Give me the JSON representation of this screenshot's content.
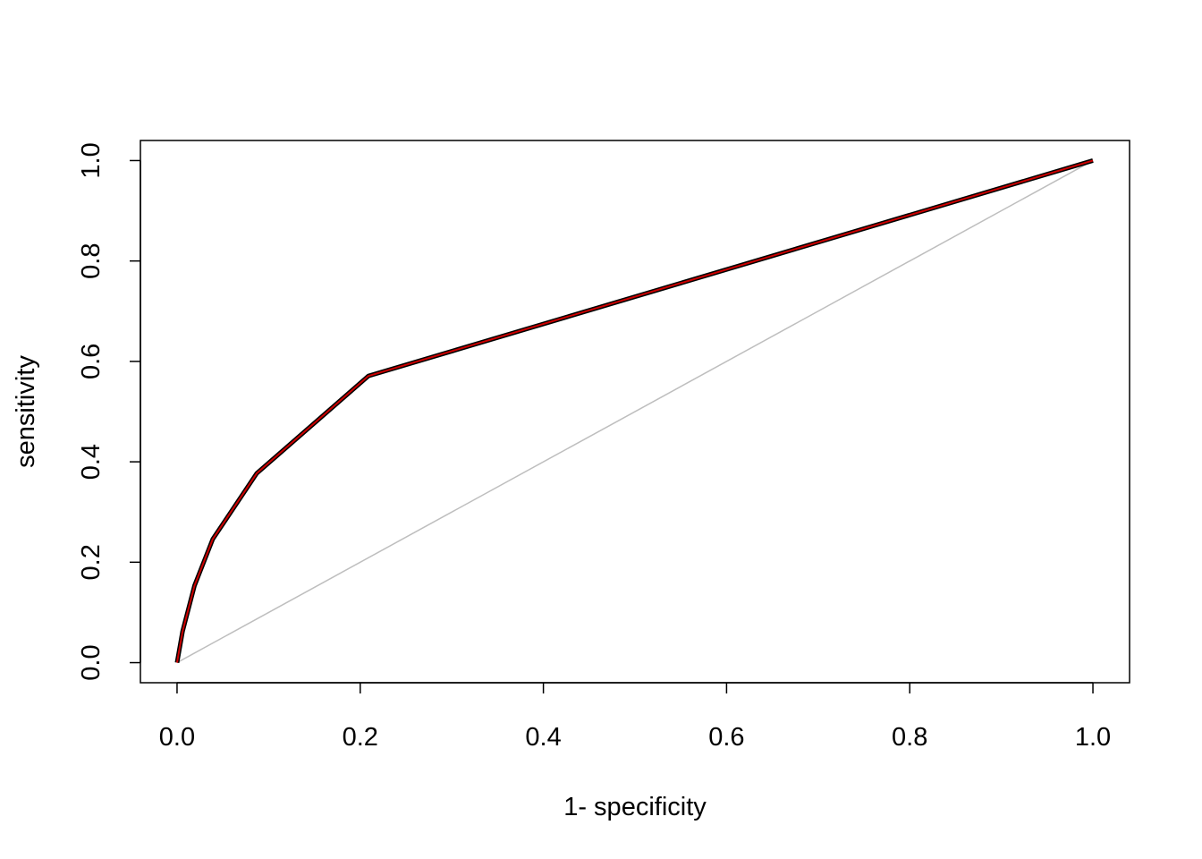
{
  "chart_data": {
    "type": "line",
    "x_label": "1- specificity",
    "y_label": "sensitivity",
    "series": [
      {
        "color": "#bebebe",
        "x": [
          0,
          1
        ],
        "values": [
          0,
          1
        ]
      },
      {
        "color": "#cc0000",
        "outline_color": "#000000",
        "x": [
          0,
          0.006,
          0.019,
          0.039,
          0.087,
          0.209,
          1
        ],
        "values": [
          0,
          0.062,
          0.153,
          0.246,
          0.377,
          0.571,
          1
        ]
      }
    ],
    "xlim": [
      -0.04,
      1.04
    ],
    "ylim": [
      -0.04,
      1.04
    ],
    "xticks": [
      {
        "value": 0,
        "label": "0.0"
      },
      0.2,
      0.4,
      0.6,
      0.8,
      {
        "value": 1,
        "label": "1.0"
      }
    ],
    "yticks": [
      {
        "value": 0,
        "label": "0.0"
      },
      0.2,
      0.4,
      0.6,
      0.8,
      {
        "value": 1,
        "label": "1.0"
      }
    ]
  }
}
